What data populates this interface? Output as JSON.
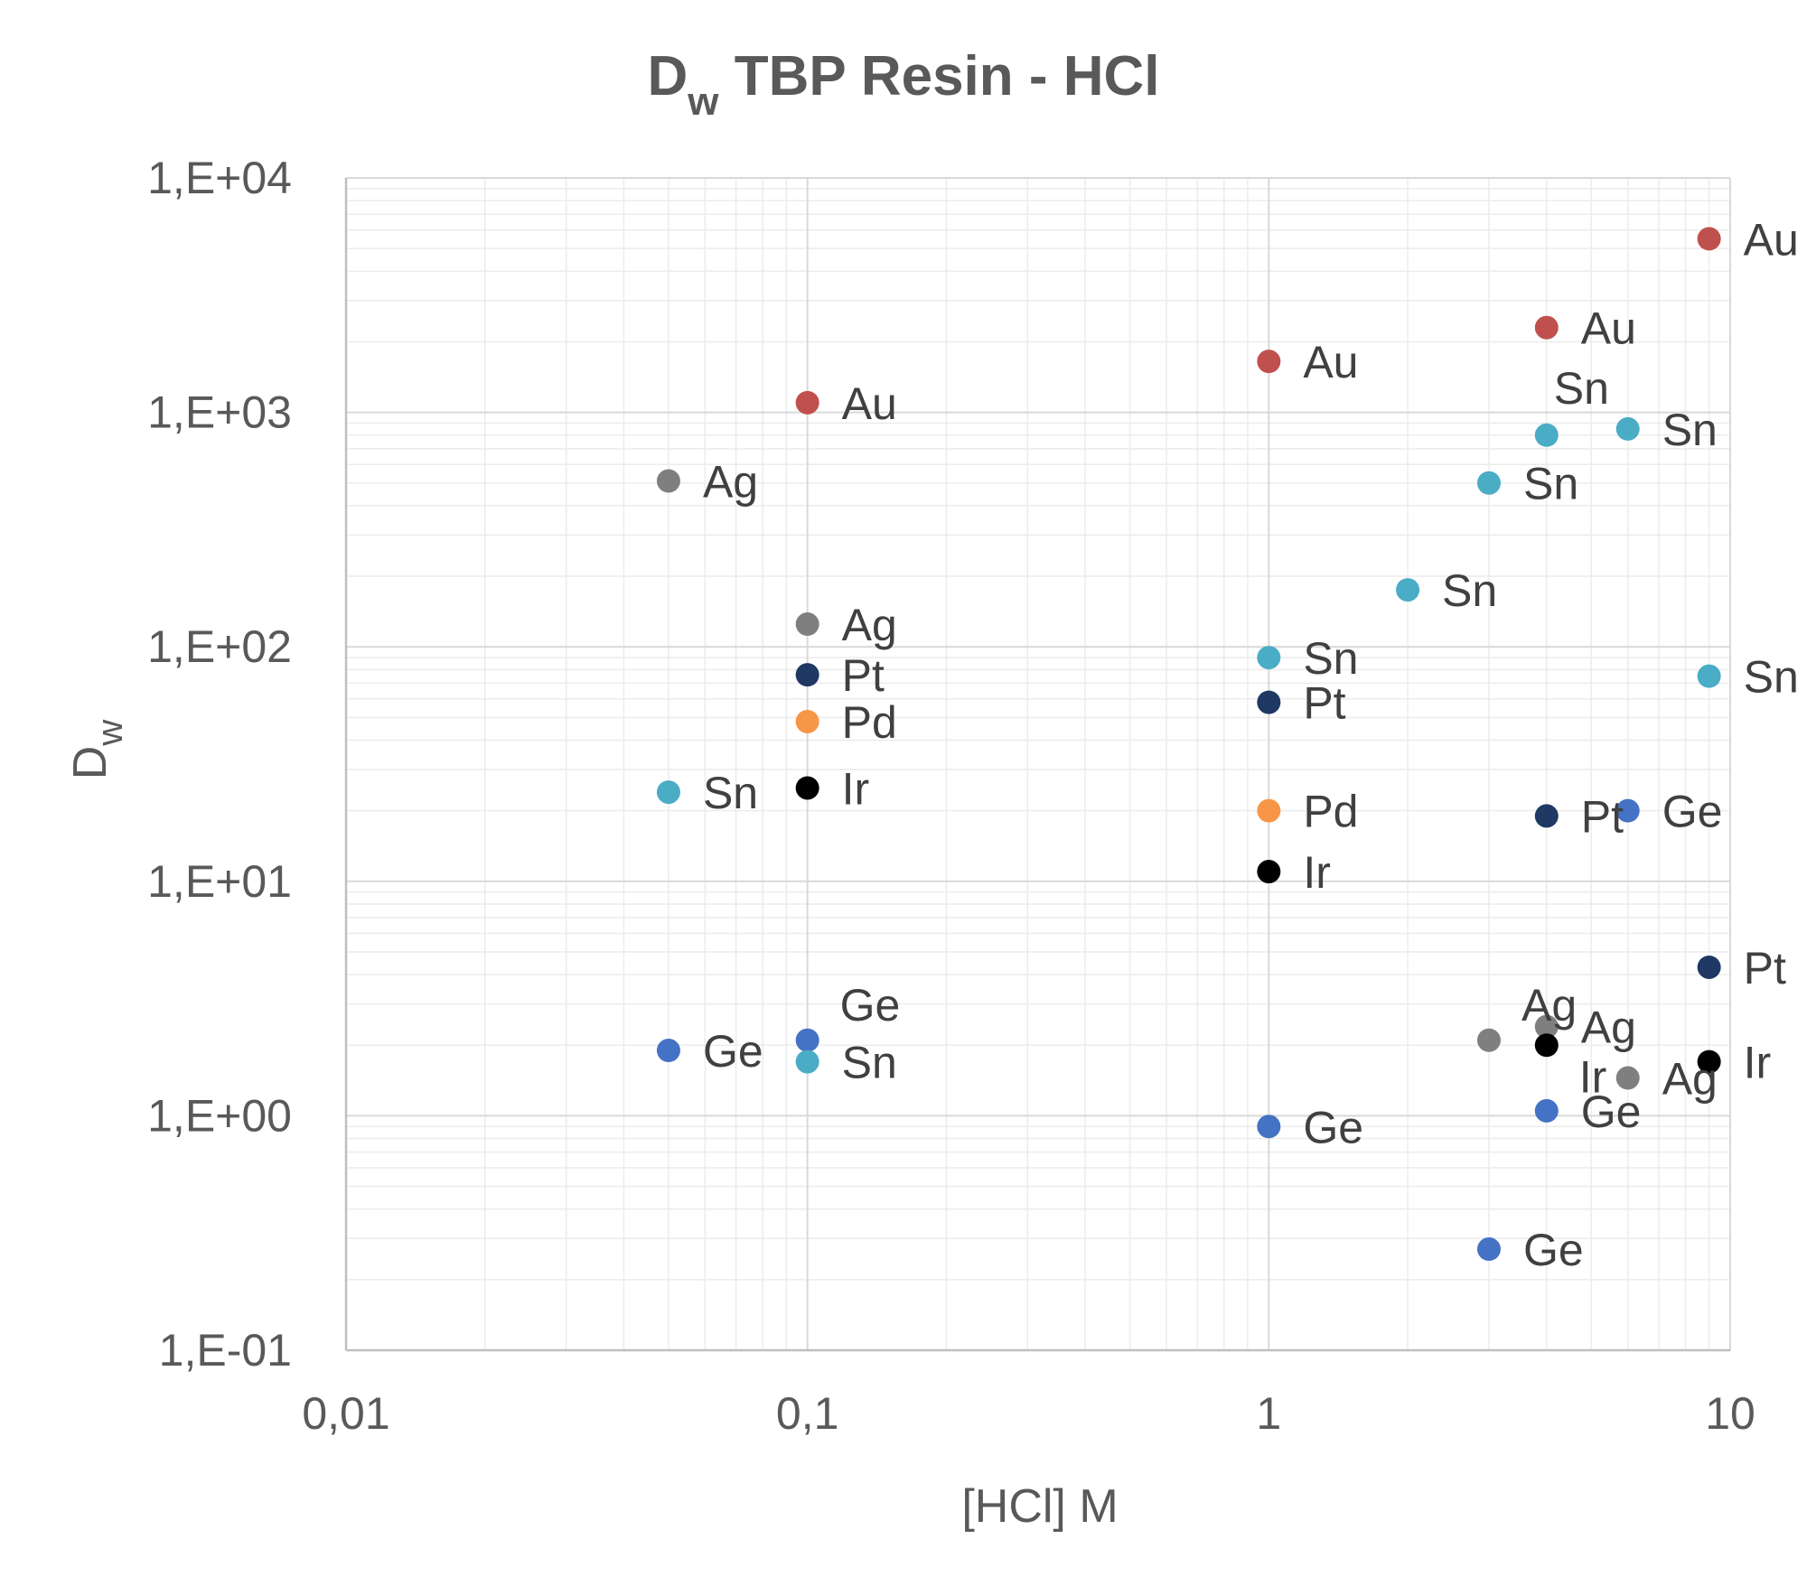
{
  "chart_data": {
    "type": "scatter",
    "title": "D",
    "title_sub": "w",
    "title_rest": " TBP Resin - HCl",
    "xlabel": "[HCl] M",
    "ylabel_main": "D",
    "ylabel_sub": "w",
    "x_scale": "log",
    "y_scale": "log",
    "xlim": [
      0.01,
      10
    ],
    "ylim": [
      0.1,
      10000
    ],
    "x_ticks": [
      {
        "value": 0.01,
        "label": "0,01"
      },
      {
        "value": 0.1,
        "label": "0,1"
      },
      {
        "value": 1,
        "label": "1"
      },
      {
        "value": 10,
        "label": "10"
      }
    ],
    "y_ticks": [
      {
        "value": 10000,
        "label": "1,E+04"
      },
      {
        "value": 1000,
        "label": "1,E+03"
      },
      {
        "value": 100,
        "label": "1,E+02"
      },
      {
        "value": 10,
        "label": "1,E+01"
      },
      {
        "value": 1,
        "label": "1,E+00"
      },
      {
        "value": 0.1,
        "label": "1,E-01"
      }
    ],
    "grid": true,
    "legend": "none",
    "element_colors": {
      "Au": "#c0504d",
      "Ag": "#7f7f7f",
      "Sn": "#4bacc6",
      "Pt": "#1f3864",
      "Pd": "#f79646",
      "Ir": "#000000",
      "Ge": "#4472c4"
    },
    "points": [
      {
        "element": "Au",
        "x": 0.1,
        "y": 1100,
        "label": "Au",
        "label_pos": "right"
      },
      {
        "element": "Ag",
        "x": 0.05,
        "y": 510,
        "label": "Ag",
        "label_pos": "right"
      },
      {
        "element": "Ag",
        "x": 0.1,
        "y": 125,
        "label": "Ag",
        "label_pos": "right"
      },
      {
        "element": "Pt",
        "x": 0.1,
        "y": 76,
        "label": "Pt",
        "label_pos": "right"
      },
      {
        "element": "Pd",
        "x": 0.1,
        "y": 48,
        "label": "Pd",
        "label_pos": "right"
      },
      {
        "element": "Ir",
        "x": 0.1,
        "y": 25,
        "label": "Ir",
        "label_pos": "right"
      },
      {
        "element": "Sn",
        "x": 0.05,
        "y": 24,
        "label": "Sn",
        "label_pos": "right"
      },
      {
        "element": "Ge",
        "x": 0.05,
        "y": 1.9,
        "label": "Ge",
        "label_pos": "right"
      },
      {
        "element": "Ge",
        "x": 0.1,
        "y": 2.1,
        "label": "Ge",
        "label_pos": "above"
      },
      {
        "element": "Sn",
        "x": 0.1,
        "y": 1.7,
        "label": "Sn",
        "label_pos": "right"
      },
      {
        "element": "Au",
        "x": 1,
        "y": 1650,
        "label": "Au",
        "label_pos": "right"
      },
      {
        "element": "Sn",
        "x": 1,
        "y": 90,
        "label": "Sn",
        "label_pos": "right"
      },
      {
        "element": "Pt",
        "x": 1,
        "y": 58,
        "label": "Pt",
        "label_pos": "right"
      },
      {
        "element": "Pd",
        "x": 1,
        "y": 20,
        "label": "Pd",
        "label_pos": "right"
      },
      {
        "element": "Ir",
        "x": 1,
        "y": 11,
        "label": "Ir",
        "label_pos": "right"
      },
      {
        "element": "Ge",
        "x": 1,
        "y": 0.9,
        "label": "Ge",
        "label_pos": "right"
      },
      {
        "element": "Sn",
        "x": 2,
        "y": 175,
        "label": "Sn",
        "label_pos": "right"
      },
      {
        "element": "Sn",
        "x": 3,
        "y": 500,
        "label": "Sn",
        "label_pos": "right"
      },
      {
        "element": "Ag",
        "x": 3,
        "y": 2.1,
        "label": "Ag",
        "label_pos": "above"
      },
      {
        "element": "Ge",
        "x": 3,
        "y": 0.27,
        "label": "Ge",
        "label_pos": "right"
      },
      {
        "element": "Au",
        "x": 4,
        "y": 2300,
        "label": "Au",
        "label_pos": "right"
      },
      {
        "element": "Sn",
        "x": 4,
        "y": 800,
        "label": "Sn",
        "label_pos": "above-right"
      },
      {
        "element": "Pt",
        "x": 4,
        "y": 19,
        "label": "Pt",
        "label_pos": "right"
      },
      {
        "element": "Ag",
        "x": 4,
        "y": 2.4,
        "label": "Ag",
        "label_pos": "right"
      },
      {
        "element": "Ir",
        "x": 4,
        "y": 2.0,
        "label": "Ir",
        "label_pos": "below-right"
      },
      {
        "element": "Ge",
        "x": 4,
        "y": 1.05,
        "label": "Ge",
        "label_pos": "right"
      },
      {
        "element": "Sn",
        "x": 6,
        "y": 850,
        "label": "Sn",
        "label_pos": "right"
      },
      {
        "element": "Ge",
        "x": 6,
        "y": 20,
        "label": "Ge",
        "label_pos": "right"
      },
      {
        "element": "Ag",
        "x": 6,
        "y": 1.45,
        "label": "Ag",
        "label_pos": "right"
      },
      {
        "element": "Au",
        "x": 9,
        "y": 5500,
        "label": "Au",
        "label_pos": "right"
      },
      {
        "element": "Sn",
        "x": 9,
        "y": 75,
        "label": "Sn",
        "label_pos": "right"
      },
      {
        "element": "Pt",
        "x": 9,
        "y": 4.3,
        "label": "Pt",
        "label_pos": "right"
      },
      {
        "element": "Ir",
        "x": 9,
        "y": 1.7,
        "label": "Ir",
        "label_pos": "right"
      }
    ]
  }
}
